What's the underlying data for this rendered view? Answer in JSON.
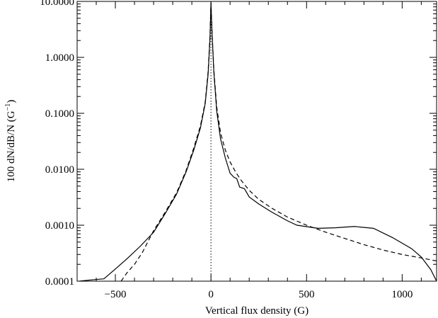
{
  "chart_data": {
    "type": "line",
    "xlabel": "Vertical flux density (G)",
    "ylabel_main": "100 dN/dB/N (G",
    "ylabel_exp": "−1",
    "ylabel_close": ")",
    "xlim": [
      -700,
      1180
    ],
    "ylim": [
      0.0001,
      10
    ],
    "yscale": "log",
    "grid": false,
    "xticks": [
      {
        "v": -500,
        "label": "−500"
      },
      {
        "v": 0,
        "label": "0"
      },
      {
        "v": 500,
        "label": "500"
      },
      {
        "v": 1000,
        "label": "1000"
      }
    ],
    "yticks": [
      {
        "v": 0.0001,
        "label": "0.0001"
      },
      {
        "v": 0.001,
        "label": "0.0010"
      },
      {
        "v": 0.01,
        "label": "0.0100"
      },
      {
        "v": 0.1,
        "label": "0.1000"
      },
      {
        "v": 1,
        "label": "1.0000"
      },
      {
        "v": 10,
        "label": "10.0000"
      }
    ],
    "series": [
      {
        "style": "solid",
        "x": [
          -690,
          -630,
          -560,
          -500,
          -440,
          -370,
          -300,
          -240,
          -180,
          -130,
          -90,
          -55,
          -30,
          -15,
          -5,
          0,
          5,
          15,
          30,
          50,
          75,
          100,
          120,
          135,
          150,
          175,
          200,
          250,
          320,
          400,
          450,
          560,
          650,
          750,
          850,
          950,
          1050,
          1100,
          1150,
          1180
        ],
        "y": [
          0.0001,
          0.000105,
          0.00011,
          0.000165,
          0.00025,
          0.00042,
          0.00075,
          0.0016,
          0.0036,
          0.009,
          0.022,
          0.055,
          0.15,
          0.5,
          2.2,
          9.5,
          3.0,
          0.55,
          0.11,
          0.035,
          0.016,
          0.0085,
          0.0072,
          0.0068,
          0.0048,
          0.0045,
          0.0032,
          0.0024,
          0.0017,
          0.0012,
          0.001,
          0.00088,
          0.0009,
          0.00095,
          0.00088,
          0.0006,
          0.00038,
          0.00027,
          0.00016,
          0.0001
        ]
      },
      {
        "style": "dashed",
        "x": [
          -470,
          -440,
          -400,
          -360,
          -300,
          -240,
          -180,
          -130,
          -90,
          -55,
          -30,
          -15,
          -5,
          0,
          5,
          15,
          30,
          50,
          75,
          100,
          130,
          160,
          200,
          250,
          320,
          400,
          500,
          600,
          700,
          800,
          900,
          1000,
          1100,
          1180
        ],
        "y": [
          0.0001,
          0.00014,
          0.0002,
          0.00032,
          0.0008,
          0.0017,
          0.0038,
          0.0095,
          0.024,
          0.06,
          0.16,
          0.55,
          2.5,
          9.5,
          3.2,
          0.6,
          0.13,
          0.045,
          0.022,
          0.0135,
          0.0088,
          0.0062,
          0.0042,
          0.0029,
          0.002,
          0.0014,
          0.001,
          0.00075,
          0.00058,
          0.00045,
          0.00036,
          0.0003,
          0.00026,
          0.00023
        ]
      }
    ],
    "reference_line": {
      "x": 0,
      "style": "dotted"
    }
  }
}
